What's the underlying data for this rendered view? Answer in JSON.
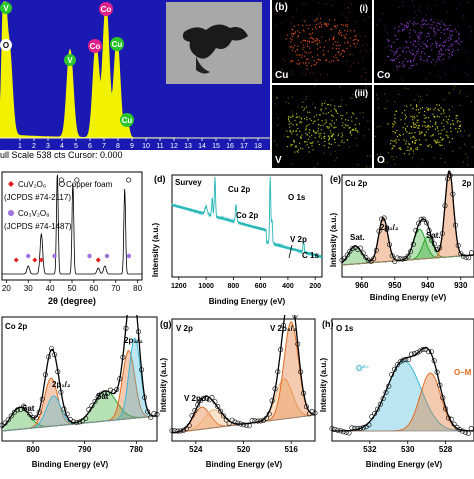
{
  "eds": {
    "peaks": [
      {
        "label": "V",
        "color": "#2bc62b"
      },
      {
        "label": "O",
        "color": "#ffffff"
      },
      {
        "label": "V",
        "color": "#2bc62b"
      },
      {
        "label": "Co",
        "color": "#e0208a"
      },
      {
        "label": "Co",
        "color": "#e0208a"
      },
      {
        "label": "Cu",
        "color": "#2bc62b"
      },
      {
        "label": "Cu",
        "color": "#2bc62b"
      }
    ],
    "x_ticks": [
      "1",
      "2",
      "3",
      "4",
      "5",
      "6",
      "7",
      "8",
      "9",
      "10",
      "11",
      "12",
      "13",
      "14",
      "15",
      "16",
      "17",
      "18"
    ],
    "footer": "ull Scale 538 cts Cursor: 0.000",
    "trace_color": "#f2f200",
    "bg_color": "#1a1ab2"
  },
  "maps": {
    "panel_label": "(b)",
    "items": [
      {
        "label": "Cu",
        "tag": "(i)",
        "color": "#e0501e"
      },
      {
        "label": "Co",
        "tag": "",
        "color": "#8a3ccc"
      },
      {
        "label": "V",
        "tag": "(iii)",
        "color": "#b4c81e"
      },
      {
        "label": "O",
        "tag": "",
        "color": "#d2d21e"
      }
    ]
  },
  "xrd": {
    "legend": [
      "CuV₂O₆",
      "(JCPDS #74-2117)",
      "Co₃V₂O₈",
      "(JCPDS #74-1487)"
    ],
    "foam_label": "Copper foam",
    "x_ticks": [
      "20",
      "30",
      "40",
      "50",
      "60",
      "70",
      "80"
    ],
    "xlabel": "2θ (degree)",
    "marker_colors": {
      "cuvo": "#e02020",
      "covo": "#a070e0"
    }
  },
  "survey": {
    "panel_label": "(d)",
    "title": "Survey",
    "peak_labels": [
      "Cu 2p",
      "Co 2p",
      "O 1s",
      "V 2p",
      "C 1s"
    ],
    "x_ticks": [
      "1200",
      "1000",
      "800",
      "600",
      "400",
      "200"
    ],
    "xlabel": "Binding Energy (eV)",
    "ylabel": "Intensity (a.u.)"
  },
  "cu2p": {
    "panel_label": "(e)",
    "title": "Cu 2p",
    "labels": [
      "Sat.",
      "2p₁/₂",
      "Sat.",
      "2p"
    ],
    "x_ticks": [
      "960",
      "950",
      "940",
      "930"
    ],
    "xlabel": "Binding Energy (eV)",
    "ylabel": "Intensity (a.u.)"
  },
  "co2p": {
    "title": "Co 2p",
    "labels": [
      "Sat",
      "2p₁/₂",
      "Sat",
      "2p₃/₂"
    ],
    "x_ticks": [
      "800",
      "790",
      "780"
    ],
    "xlabel": "Binding Energy (eV)"
  },
  "v2p": {
    "panel_label": "(g)",
    "title": "V 2p",
    "labels": [
      "V 2p₁/₂",
      "V 2p₃/₂"
    ],
    "x_ticks": [
      "524",
      "520",
      "516"
    ],
    "xlabel": "Binding Energy (eV)",
    "ylabel": "Intensity (a.u.)"
  },
  "o1s": {
    "panel_label": "(h)",
    "title": "O 1s",
    "labels": [
      "O²⁻",
      "O–M"
    ],
    "x_ticks": [
      "532",
      "530",
      "528"
    ],
    "xlabel": "Binding Energy (eV)",
    "ylabel": "Intensity (a.u.)"
  }
}
